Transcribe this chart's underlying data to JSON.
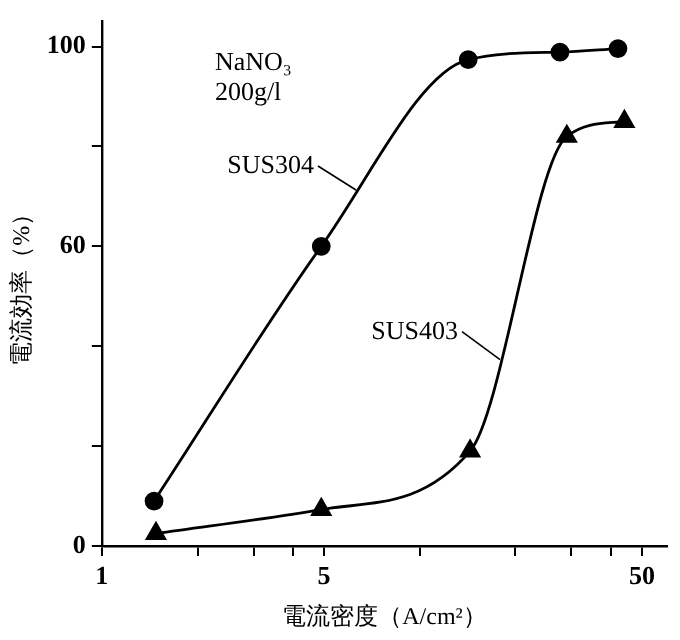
{
  "chart_data": {
    "type": "line",
    "xlabel": "電流密度（A/cm²）",
    "ylabel": "電流効率（%）",
    "log": "x",
    "xlim": [
      1,
      60
    ],
    "xticks": [
      1,
      {
        "value": 2,
        "label": null
      },
      {
        "value": 3,
        "label": null
      },
      {
        "value": 4,
        "label": null
      },
      5,
      {
        "value": 10,
        "label": null
      },
      {
        "value": 20,
        "label": null
      },
      {
        "value": 30,
        "label": null
      },
      {
        "value": 40,
        "label": null
      },
      50
    ],
    "ylim": [
      0,
      105
    ],
    "yticks": [
      0,
      {
        "value": 20,
        "label": null
      },
      {
        "value": 40,
        "label": null
      },
      60,
      {
        "value": 80,
        "label": null
      },
      100
    ],
    "grid": false,
    "legend": "top",
    "line_style": "solid",
    "annotations": [
      "NaNO₃",
      "200g/l"
    ],
    "series": [
      {
        "name": "SUS304",
        "color": "#000000",
        "marker": "circle",
        "x": [
          1.46,
          4.9,
          14.2,
          27.6,
          42
        ],
        "values": [
          9,
          60,
          97.4,
          98.9,
          99.6
        ]
      },
      {
        "name": "SUS403",
        "color": "#000000",
        "marker": "triangle",
        "x": [
          1.48,
          4.9,
          14.4,
          29,
          44
        ],
        "values": [
          2.5,
          7.3,
          19,
          82,
          85
        ]
      }
    ]
  }
}
